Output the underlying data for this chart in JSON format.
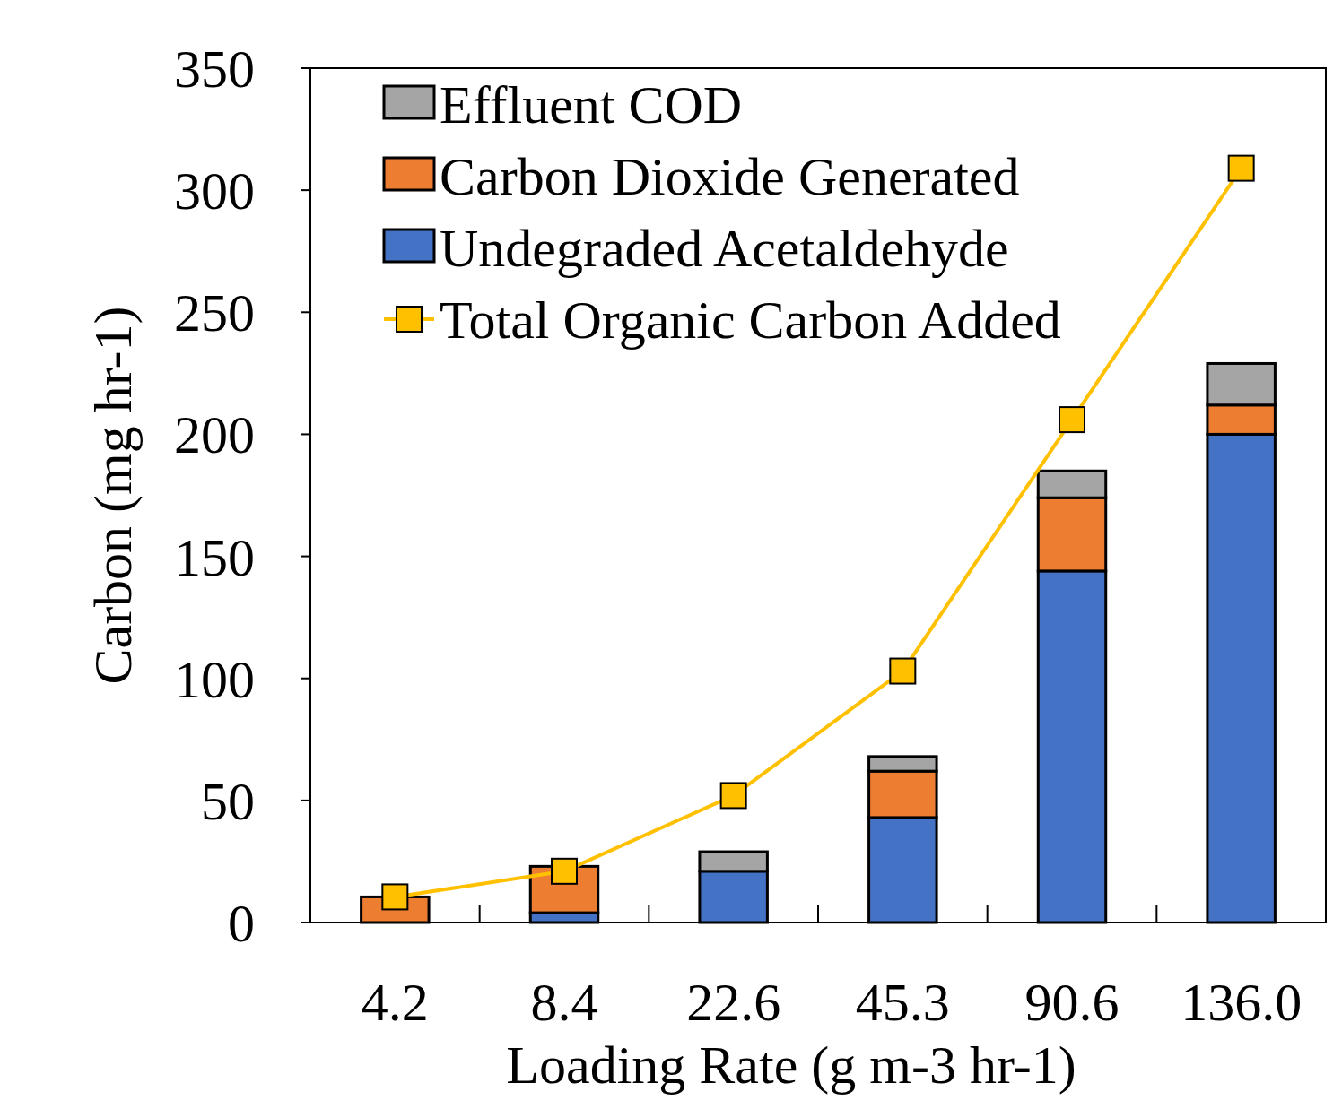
{
  "chart_data": {
    "type": "bar",
    "stacked": true,
    "xlabel": "Loading Rate (g m-3 hr-1)",
    "ylabel": "Carbon (mg hr-1)",
    "categories": [
      "4.2",
      "8.4",
      "22.6",
      "45.3",
      "90.6",
      "136.0"
    ],
    "series": [
      {
        "name": "Undegraded Acetaldehyde",
        "color": "#4472c4",
        "values": [
          0,
          4,
          21,
          43,
          144,
          200
        ]
      },
      {
        "name": "Carbon Dioxide Generated",
        "color": "#ed7d31",
        "values": [
          10.5,
          19,
          0,
          19,
          30,
          12
        ]
      },
      {
        "name": "Effluent COD",
        "color": "#a5a5a5",
        "values": [
          0,
          0,
          8,
          6,
          11,
          17
        ]
      },
      {
        "name": "Total Organic Carbon Added",
        "type": "line",
        "color": "#ffc000",
        "marker": "square",
        "values": [
          10.5,
          21,
          52,
          103,
          206,
          309
        ]
      }
    ],
    "ylim": [
      0,
      350
    ],
    "yticks": [
      0,
      50,
      100,
      150,
      200,
      250,
      300,
      350
    ],
    "grid": false,
    "legend": "top left"
  }
}
